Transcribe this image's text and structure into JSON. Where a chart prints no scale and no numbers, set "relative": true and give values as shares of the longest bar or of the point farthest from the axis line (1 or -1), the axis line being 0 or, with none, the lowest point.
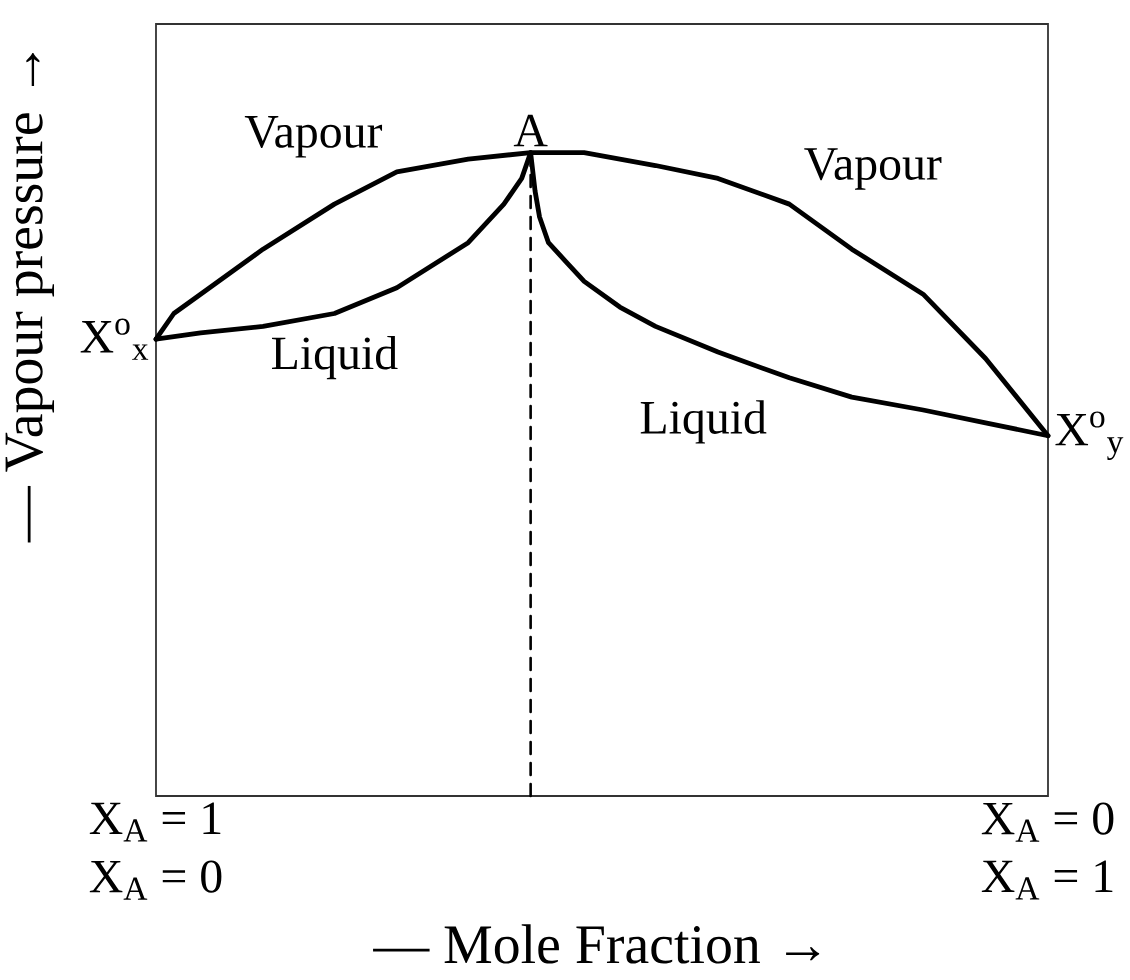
{
  "chart_data": {
    "type": "line",
    "relative": true,
    "tick_labels": "x",
    "xlabel": "— Mole Fraction →",
    "ylabel": "— Vapour pressure →",
    "xlim": [
      1,
      0
    ],
    "xticks": [
      {
        "value": 1,
        "label": "X$_{A}$ = 1"
      },
      {
        "value": 0,
        "label": "X$_{A}$ = 0"
      }
    ],
    "x2lim": [
      0,
      1
    ],
    "x2ticks": [
      {
        "value": 0,
        "label": "X$_{A}$ = 0"
      },
      {
        "value": 1,
        "label": "X$_{A}$ = 1"
      }
    ],
    "series": [
      {
        "name": "Vapour",
        "color": "#000000",
        "x": [
          1,
          0.98,
          0.95,
          0.88,
          0.8,
          0.73,
          0.65,
          0.58,
          0.52,
          0.44,
          0.37,
          0.29,
          0.22,
          0.14,
          0.07,
          0
        ],
        "values": [
          0.71,
          0.75,
          0.78,
          0.85,
          0.92,
          0.97,
          0.99,
          1,
          1,
          0.98,
          0.96,
          0.92,
          0.85,
          0.78,
          0.68,
          0.56
        ]
      },
      {
        "name": "Liquid",
        "color": "#000000",
        "x": [
          1,
          0.95,
          0.88,
          0.8,
          0.73,
          0.65,
          0.61,
          0.59,
          0.58
        ],
        "values": [
          0.71,
          0.72,
          0.73,
          0.75,
          0.79,
          0.86,
          0.92,
          0.96,
          1
        ]
      },
      {
        "name": "Liquid",
        "color": "#000000",
        "x": [
          0.58,
          0.575,
          0.57,
          0.56,
          0.54,
          0.52,
          0.48,
          0.44,
          0.37,
          0.29,
          0.22,
          0.14,
          0.07,
          0
        ],
        "values": [
          1,
          0.94,
          0.9,
          0.86,
          0.83,
          0.8,
          0.76,
          0.73,
          0.69,
          0.65,
          0.62,
          0.6,
          0.58,
          0.56
        ]
      },
      {
        "color": "#000000",
        "line_style": "dashed",
        "x": [
          0.58,
          0.58
        ],
        "values": [
          0,
          1
        ]
      }
    ],
    "annotations": [
      {
        "text": "A",
        "x": 0.58,
        "y": 1
      },
      {
        "text": "X$^{o}$$_{x}$",
        "x": 1,
        "y": 0.71
      },
      {
        "text": "X$^{o}$$_{y}$",
        "x": 0,
        "y": 0.56
      }
    ]
  }
}
